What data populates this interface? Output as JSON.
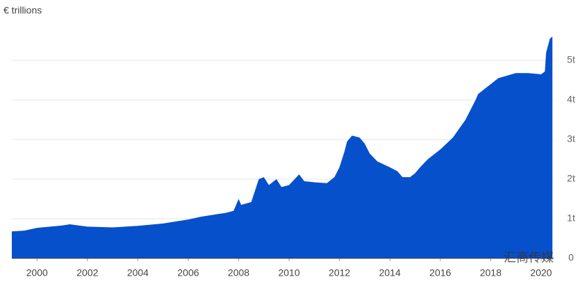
{
  "chart_data": {
    "type": "area",
    "y_label": "€ trillions",
    "watermark": "汇商传媒",
    "color": "#0750cc",
    "x": [
      1999.0,
      1999.5,
      2000.0,
      2001.0,
      2001.3,
      2002.0,
      2003.0,
      2003.5,
      2004.0,
      2005.0,
      2006.0,
      2006.5,
      2007.0,
      2007.5,
      2007.8,
      2008.0,
      2008.1,
      2008.5,
      2008.8,
      2009.0,
      2009.2,
      2009.5,
      2009.7,
      2010.0,
      2010.4,
      2010.6,
      2011.0,
      2011.5,
      2011.8,
      2012.0,
      2012.2,
      2012.3,
      2012.5,
      2012.8,
      2013.0,
      2013.2,
      2013.5,
      2014.0,
      2014.3,
      2014.5,
      2014.8,
      2015.0,
      2015.2,
      2015.5,
      2016.0,
      2016.5,
      2017.0,
      2017.4,
      2017.5,
      2018.0,
      2018.3,
      2019.0,
      2019.5,
      2020.0,
      2020.15,
      2020.2,
      2020.35,
      2020.45
    ],
    "values": [
      0.68,
      0.7,
      0.77,
      0.83,
      0.86,
      0.8,
      0.78,
      0.8,
      0.82,
      0.88,
      0.98,
      1.05,
      1.1,
      1.15,
      1.2,
      1.5,
      1.35,
      1.42,
      2.0,
      2.05,
      1.85,
      2.0,
      1.8,
      1.85,
      2.12,
      1.95,
      1.92,
      1.9,
      2.05,
      2.3,
      2.7,
      2.95,
      3.1,
      3.05,
      2.9,
      2.65,
      2.45,
      2.3,
      2.2,
      2.05,
      2.05,
      2.15,
      2.3,
      2.5,
      2.75,
      3.05,
      3.5,
      4.0,
      4.15,
      4.4,
      4.55,
      4.68,
      4.68,
      4.65,
      4.72,
      5.2,
      5.55,
      5.6
    ],
    "xlim": [
      1999,
      2020.5
    ],
    "xticks": [
      2000,
      2002,
      2004,
      2006,
      2008,
      2010,
      2012,
      2014,
      2016,
      2018,
      2020
    ],
    "ylim": [
      0,
      5.5
    ],
    "yticks": [
      0,
      {
        "value": 1,
        "label": "1t"
      },
      {
        "value": 2,
        "label": "2t"
      },
      {
        "value": 3,
        "label": "3t"
      },
      {
        "value": 4,
        "label": "4t"
      },
      {
        "value": 5,
        "label": "5t"
      }
    ],
    "grid": true
  }
}
